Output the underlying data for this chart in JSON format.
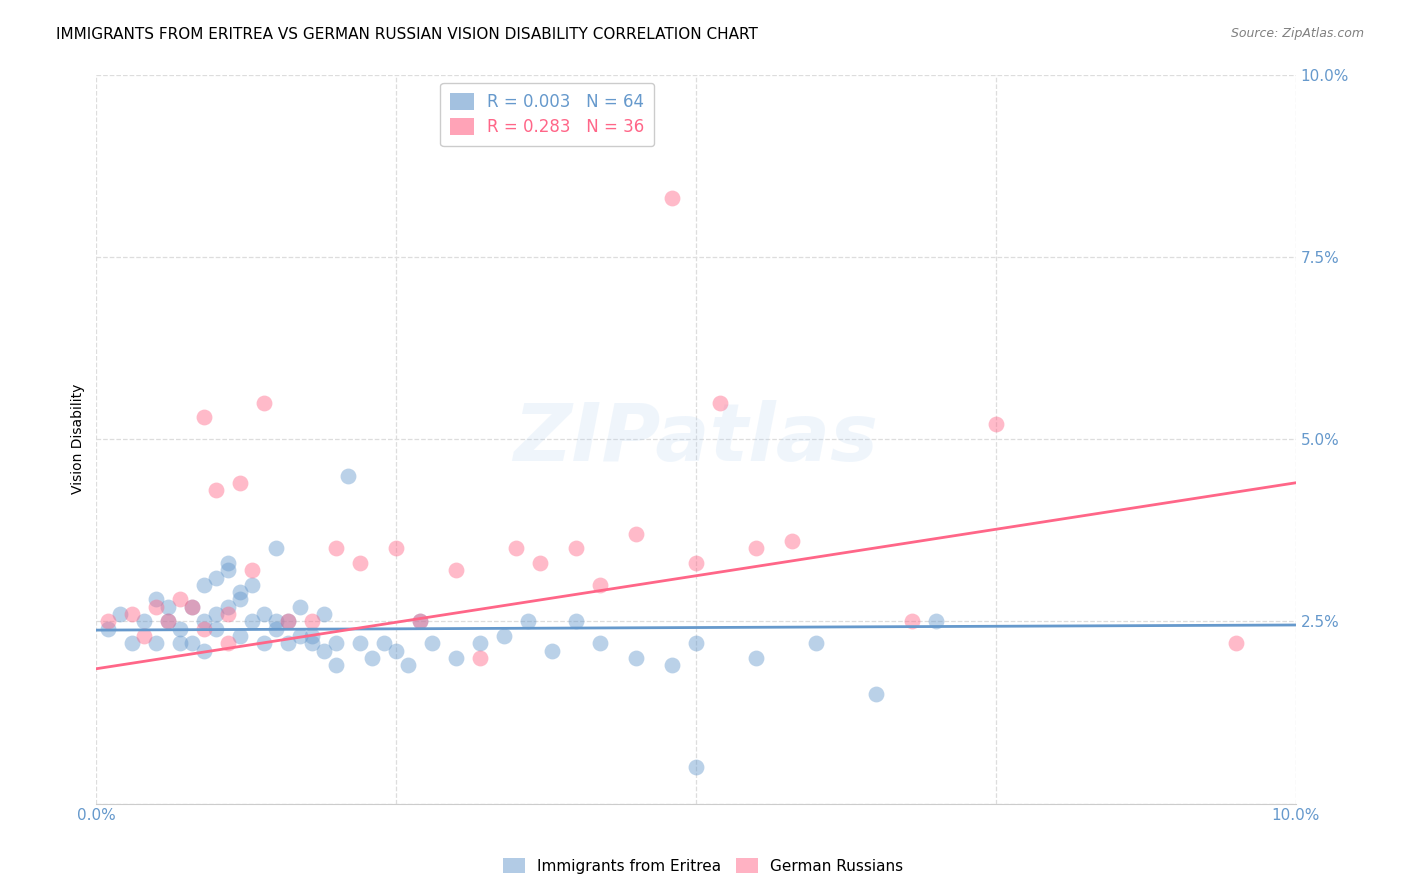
{
  "title": "IMMIGRANTS FROM ERITREA VS GERMAN RUSSIAN VISION DISABILITY CORRELATION CHART",
  "source": "Source: ZipAtlas.com",
  "ylabel": "Vision Disability",
  "watermark": "ZIPatlas",
  "xlim": [
    0.0,
    0.1
  ],
  "ylim": [
    0.0,
    0.1
  ],
  "xticks": [
    0.0,
    0.1
  ],
  "yticks": [
    0.025,
    0.05,
    0.075,
    0.1
  ],
  "xticklabels": [
    "0.0%",
    "10.0%"
  ],
  "yticklabels": [
    "2.5%",
    "5.0%",
    "7.5%",
    "10.0%"
  ],
  "grid_ticks": [
    0.025,
    0.05,
    0.075,
    0.1
  ],
  "blue_color": "#6699CC",
  "pink_color": "#FF6688",
  "blue_R": "0.003",
  "blue_N": "64",
  "pink_R": "0.283",
  "pink_N": "36",
  "legend_label_blue": "Immigrants from Eritrea",
  "legend_label_pink": "German Russians",
  "blue_scatter_x": [
    0.001,
    0.002,
    0.003,
    0.004,
    0.005,
    0.005,
    0.006,
    0.006,
    0.007,
    0.007,
    0.008,
    0.008,
    0.009,
    0.009,
    0.009,
    0.01,
    0.01,
    0.01,
    0.011,
    0.011,
    0.011,
    0.012,
    0.012,
    0.012,
    0.013,
    0.013,
    0.014,
    0.014,
    0.015,
    0.015,
    0.015,
    0.016,
    0.016,
    0.017,
    0.017,
    0.018,
    0.018,
    0.019,
    0.019,
    0.02,
    0.02,
    0.021,
    0.022,
    0.023,
    0.024,
    0.025,
    0.026,
    0.027,
    0.028,
    0.03,
    0.032,
    0.034,
    0.036,
    0.038,
    0.04,
    0.042,
    0.045,
    0.048,
    0.05,
    0.055,
    0.06,
    0.065,
    0.07,
    0.05
  ],
  "blue_scatter_y": [
    0.024,
    0.026,
    0.022,
    0.025,
    0.022,
    0.028,
    0.025,
    0.027,
    0.024,
    0.022,
    0.027,
    0.022,
    0.025,
    0.021,
    0.03,
    0.031,
    0.024,
    0.026,
    0.032,
    0.027,
    0.033,
    0.029,
    0.028,
    0.023,
    0.025,
    0.03,
    0.026,
    0.022,
    0.025,
    0.024,
    0.035,
    0.022,
    0.025,
    0.027,
    0.023,
    0.023,
    0.022,
    0.026,
    0.021,
    0.022,
    0.019,
    0.045,
    0.022,
    0.02,
    0.022,
    0.021,
    0.019,
    0.025,
    0.022,
    0.02,
    0.022,
    0.023,
    0.025,
    0.021,
    0.025,
    0.022,
    0.02,
    0.019,
    0.022,
    0.02,
    0.022,
    0.015,
    0.025,
    0.005
  ],
  "pink_scatter_x": [
    0.001,
    0.003,
    0.004,
    0.005,
    0.006,
    0.007,
    0.008,
    0.009,
    0.009,
    0.01,
    0.011,
    0.011,
    0.012,
    0.013,
    0.014,
    0.016,
    0.018,
    0.02,
    0.022,
    0.025,
    0.027,
    0.03,
    0.032,
    0.035,
    0.037,
    0.04,
    0.042,
    0.045,
    0.048,
    0.05,
    0.052,
    0.055,
    0.058,
    0.068,
    0.075,
    0.095
  ],
  "pink_scatter_y": [
    0.025,
    0.026,
    0.023,
    0.027,
    0.025,
    0.028,
    0.027,
    0.024,
    0.053,
    0.043,
    0.022,
    0.026,
    0.044,
    0.032,
    0.055,
    0.025,
    0.025,
    0.035,
    0.033,
    0.035,
    0.025,
    0.032,
    0.02,
    0.035,
    0.033,
    0.035,
    0.03,
    0.037,
    0.083,
    0.033,
    0.055,
    0.035,
    0.036,
    0.025,
    0.052,
    0.022
  ],
  "blue_trendline_x": [
    0.0,
    0.1
  ],
  "blue_trendline_y": [
    0.0238,
    0.0245
  ],
  "pink_trendline_x": [
    0.0,
    0.1
  ],
  "pink_trendline_y": [
    0.0185,
    0.044
  ],
  "grid_color": "#DDDDDD",
  "background_color": "#FFFFFF",
  "tick_color": "#6699CC",
  "title_fontsize": 11,
  "axis_label_fontsize": 10
}
